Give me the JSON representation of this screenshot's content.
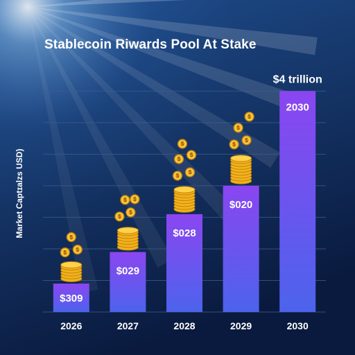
{
  "colors": {
    "bg_top": "#1f4f8f",
    "bg_bottom": "#0a1a3e",
    "bar_top": "#8a46f0",
    "bar_bottom": "#4c63ec",
    "gridline": "#3c5c90",
    "coin": "#f2b21c",
    "coin_edge": "#c2850c",
    "text": "#ffffff"
  },
  "chart_data": {
    "type": "bar",
    "title": "Stablecoin Rіwards Pool At Stake",
    "ylabel": "Market Captɪalzs USD)",
    "xlabel": "",
    "categories": [
      "2026",
      "2027",
      "2028",
      "2029",
      "2030"
    ],
    "values": [
      0.45,
      0.95,
      1.55,
      2.0,
      3.5
    ],
    "bar_labels": [
      "$309",
      "$029",
      "$028",
      "$020",
      "2030"
    ],
    "top_annotation": "$4 trillion",
    "ylim": [
      0,
      3.8
    ],
    "grid": true,
    "legend": "none",
    "coin_icon": "dollar-coin-icon",
    "coin_symbol": "$"
  }
}
